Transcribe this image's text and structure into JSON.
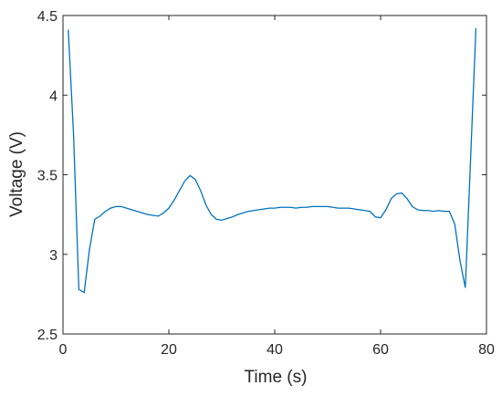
{
  "chart_data": {
    "type": "line",
    "title": "",
    "xlabel": "Time (s)",
    "ylabel": "Voltage (V)",
    "xlim": [
      0,
      80
    ],
    "ylim": [
      2.5,
      4.5
    ],
    "xticks": [
      0,
      20,
      40,
      60,
      80
    ],
    "xtick_labels": [
      "0",
      "20",
      "40",
      "60",
      "80"
    ],
    "yticks": [
      2.5,
      3,
      3.5,
      4,
      4.5
    ],
    "ytick_labels": [
      "2.5",
      "3",
      "3.5",
      "4",
      "4.5"
    ],
    "grid": false,
    "box": true,
    "line_color": "#0072BD",
    "axis_color": "#262626",
    "series": [
      {
        "x": [
          1,
          2,
          3,
          4,
          5,
          6,
          7,
          8,
          9,
          10,
          11,
          12,
          13,
          14,
          15,
          16,
          17,
          18,
          19,
          20,
          21,
          22,
          23,
          24,
          25,
          26,
          27,
          28,
          29,
          30,
          31,
          32,
          33,
          34,
          35,
          36,
          37,
          38,
          39,
          40,
          41,
          42,
          43,
          44,
          45,
          46,
          47,
          48,
          49,
          50,
          51,
          52,
          53,
          54,
          55,
          56,
          57,
          58,
          59,
          60,
          61,
          62,
          63,
          64,
          65,
          66,
          67,
          68,
          69,
          70,
          71,
          72,
          73,
          74,
          75,
          76,
          77,
          78
        ],
        "values": [
          4.41,
          3.75,
          2.78,
          2.76,
          3.03,
          3.22,
          3.24,
          3.27,
          3.29,
          3.3,
          3.3,
          3.29,
          3.28,
          3.27,
          3.26,
          3.25,
          3.245,
          3.24,
          3.26,
          3.29,
          3.34,
          3.4,
          3.46,
          3.495,
          3.47,
          3.4,
          3.31,
          3.25,
          3.22,
          3.215,
          3.225,
          3.235,
          3.25,
          3.26,
          3.27,
          3.275,
          3.28,
          3.285,
          3.29,
          3.29,
          3.295,
          3.295,
          3.295,
          3.29,
          3.295,
          3.295,
          3.3,
          3.3,
          3.3,
          3.3,
          3.295,
          3.29,
          3.29,
          3.29,
          3.285,
          3.28,
          3.275,
          3.27,
          3.235,
          3.23,
          3.28,
          3.35,
          3.38,
          3.385,
          3.35,
          3.3,
          3.28,
          3.275,
          3.275,
          3.27,
          3.275,
          3.27,
          3.27,
          3.19,
          2.96,
          2.79,
          3.6,
          4.42
        ]
      }
    ]
  }
}
